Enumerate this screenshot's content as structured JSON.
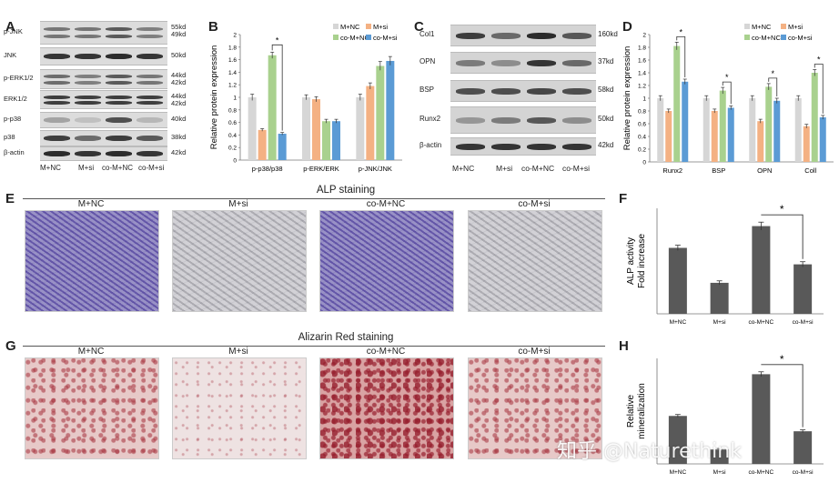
{
  "panel_labels": {
    "A": "A",
    "B": "B",
    "C": "C",
    "D": "D",
    "E": "E",
    "F": "F",
    "G": "G",
    "H": "H"
  },
  "panelA": {
    "rows": [
      {
        "label": "p-JNK",
        "kd": [
          "55kd",
          "49kd"
        ]
      },
      {
        "label": "JNK",
        "kd": [
          "50kd"
        ]
      },
      {
        "label": "p-ERK1/2",
        "kd": [
          "44kd",
          "42kd"
        ]
      },
      {
        "label": "ERK1/2",
        "kd": [
          "44kd",
          "42kd"
        ]
      },
      {
        "label": "p-p38",
        "kd": [
          "40kd"
        ]
      },
      {
        "label": "p38",
        "kd": [
          "38kd"
        ]
      },
      {
        "label": "β-actin",
        "kd": [
          "42kd"
        ]
      }
    ],
    "lanes": [
      "M+NC",
      "M+si",
      "co-M+NC",
      "co-M+si"
    ]
  },
  "panelC": {
    "rows": [
      {
        "label": "Col1",
        "kd": "160kd"
      },
      {
        "label": "OPN",
        "kd": "37kd"
      },
      {
        "label": "BSP",
        "kd": "58kd"
      },
      {
        "label": "Runx2",
        "kd": "50kd"
      },
      {
        "label": "β-actin",
        "kd": "42kd"
      }
    ],
    "lanes": [
      "M+NC",
      "M+si",
      "co-M+NC",
      "co-M+si"
    ]
  },
  "colors": {
    "M+NC": "#d6d6d6",
    "M+si": "#f4b183",
    "co-M+NC": "#a9d18e",
    "co-M+si": "#5b9bd5",
    "gray_bar": "#595959"
  },
  "chart_data": [
    {
      "id": "B",
      "type": "bar",
      "ylabel": "Relative protein expression",
      "ylim": [
        0,
        2
      ],
      "yticks": [
        "0",
        "0.2",
        "0.4",
        "0.6",
        "0.8",
        "1",
        "1.2",
        "1.4",
        "1.6",
        "1.8",
        "2"
      ],
      "categories": [
        "p-p38/p38",
        "p-ERK/ERK",
        "p-JNK/JNK"
      ],
      "series": [
        {
          "name": "M+NC",
          "values": [
            1.0,
            1.0,
            1.0
          ],
          "errors": [
            0.05,
            0.04,
            0.05
          ]
        },
        {
          "name": "M+si",
          "values": [
            0.48,
            0.97,
            1.18
          ],
          "errors": [
            0.02,
            0.04,
            0.05
          ]
        },
        {
          "name": "co-M+NC",
          "values": [
            1.67,
            0.62,
            1.5
          ],
          "errors": [
            0.05,
            0.03,
            0.07
          ]
        },
        {
          "name": "co-M+si",
          "values": [
            0.42,
            0.62,
            1.58
          ],
          "errors": [
            0.02,
            0.03,
            0.07
          ]
        }
      ],
      "significance": [
        {
          "text": "*"
        }
      ],
      "legend": "top"
    },
    {
      "id": "D",
      "type": "bar",
      "ylabel": "Relative protein expression",
      "ylim": [
        0,
        2
      ],
      "yticks": [
        "0",
        "0.2",
        "0.4",
        "0.6",
        "0.8",
        "1",
        "1.2",
        "1.4",
        "1.6",
        "1.8",
        "2"
      ],
      "categories": [
        "Runx2",
        "BSP",
        "OPN",
        "Coll"
      ],
      "series": [
        {
          "name": "M+NC",
          "values": [
            1.0,
            1.0,
            1.0,
            1.0
          ],
          "errors": [
            0.04,
            0.04,
            0.04,
            0.04
          ]
        },
        {
          "name": "M+si",
          "values": [
            0.8,
            0.8,
            0.64,
            0.56
          ],
          "errors": [
            0.03,
            0.03,
            0.03,
            0.03
          ]
        },
        {
          "name": "co-M+NC",
          "values": [
            1.82,
            1.12,
            1.18,
            1.4
          ],
          "errors": [
            0.06,
            0.05,
            0.05,
            0.05
          ]
        },
        {
          "name": "co-M+si",
          "values": [
            1.26,
            0.85,
            0.96,
            0.7
          ],
          "errors": [
            0.04,
            0.03,
            0.04,
            0.03
          ]
        }
      ],
      "significance": [
        {
          "text": "*"
        },
        {
          "text": "*"
        },
        {
          "text": "*"
        },
        {
          "text": "*"
        }
      ],
      "legend": "top"
    },
    {
      "id": "F",
      "type": "bar",
      "ylabel": [
        "ALP activity",
        "Fold increase"
      ],
      "ylim": [
        0,
        1.6
      ],
      "categories": [
        "M+NC",
        "M+si",
        "co-M+NC",
        "co-M+si"
      ],
      "values": [
        1.0,
        0.47,
        1.33,
        0.75
      ],
      "errors": [
        0.04,
        0.03,
        0.06,
        0.04
      ],
      "significance": [
        {
          "text": "*"
        }
      ]
    },
    {
      "id": "H",
      "type": "bar",
      "ylabel": [
        "Relative",
        "mineralization"
      ],
      "ylim": [
        0,
        2.2
      ],
      "categories": [
        "M+NC",
        "M+si",
        "co-M+NC",
        "co-M+si"
      ],
      "values": [
        1.0,
        0.3,
        1.87,
        0.68
      ],
      "errors": [
        0.03,
        0.02,
        0.05,
        0.03
      ],
      "significance": [
        {
          "text": "*"
        }
      ]
    }
  ],
  "panelE": {
    "title": "ALP staining",
    "images": [
      "M+NC",
      "M+si",
      "co-M+NC",
      "co-M+si"
    ]
  },
  "panelG": {
    "title": "Alizarin Red staining",
    "images": [
      "M+NC",
      "M+si",
      "co-M+NC",
      "co-M+si"
    ]
  },
  "watermark": "知乎 @Naturethink"
}
